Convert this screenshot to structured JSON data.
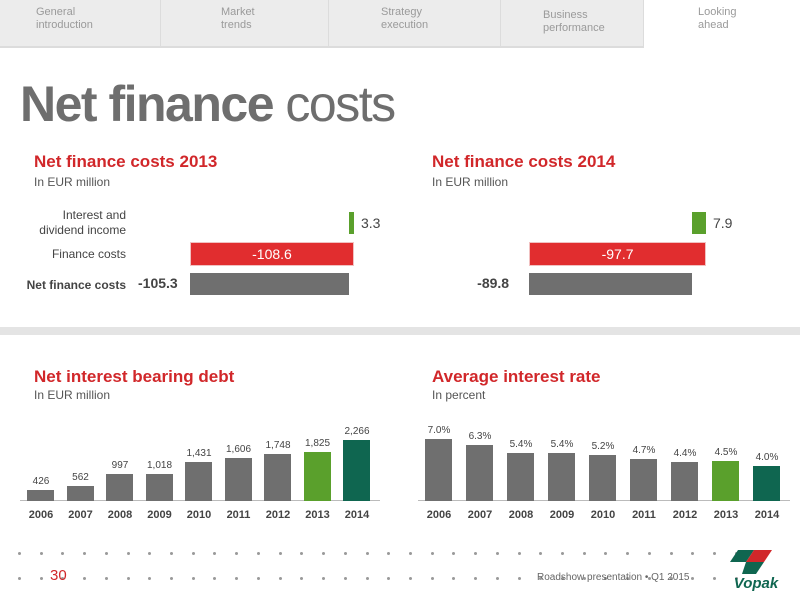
{
  "nav": {
    "tabs": [
      {
        "label": "General\nintroduction",
        "active": false
      },
      {
        "label": "Market\ntrends",
        "active": false
      },
      {
        "label": "Strategy\nexecution",
        "active": false
      },
      {
        "label": "Business\nperformance",
        "active": false
      },
      {
        "label": "Looking\nahead",
        "active": true
      }
    ]
  },
  "page": {
    "title_bold": "Net finance",
    "title_rest": "costs"
  },
  "footer": {
    "page_number": "30",
    "text": "Roadshow presentation  •  Q1 2015",
    "logo_text": "Vopak"
  },
  "colors": {
    "accent_red": "#d1272a",
    "bar_red": "#e12d2f",
    "green": "#5aa02c",
    "dark_green": "#0f6650",
    "grey": "#6f6f6f"
  },
  "chart_data": [
    {
      "type": "bar",
      "orientation": "waterfall",
      "title": "Net finance costs 2013",
      "subtitle": "In EUR million",
      "categories": [
        "Interest and dividend income",
        "Finance costs",
        "Net finance costs"
      ],
      "category_label_lines": [
        [
          "Interest and",
          "dividend income"
        ],
        [
          "Finance costs"
        ],
        [
          "Net finance costs"
        ]
      ],
      "values": [
        3.3,
        -108.6,
        -105.3
      ],
      "value_labels": [
        "3.3",
        "-108.6",
        "-105.3"
      ]
    },
    {
      "type": "bar",
      "orientation": "waterfall",
      "title": "Net finance costs 2014",
      "subtitle": "In EUR million",
      "categories": [
        "Interest and dividend income",
        "Finance costs",
        "Net finance costs"
      ],
      "values": [
        7.9,
        -97.7,
        -89.8
      ],
      "value_labels": [
        "7.9",
        "-97.7",
        "-89.8"
      ]
    },
    {
      "type": "bar",
      "title": "Net interest bearing debt",
      "subtitle": "In EUR million",
      "categories": [
        "2006",
        "2007",
        "2008",
        "2009",
        "2010",
        "2011",
        "2012",
        "2013",
        "2014"
      ],
      "values": [
        426,
        562,
        997,
        1018,
        1431,
        1606,
        1748,
        1825,
        2266
      ],
      "value_labels": [
        "426",
        "562",
        "997",
        "1,018",
        "1,431",
        "1,606",
        "1,748",
        "1,825",
        "2,266"
      ],
      "bar_colors": [
        "#6f6f6f",
        "#6f6f6f",
        "#6f6f6f",
        "#6f6f6f",
        "#6f6f6f",
        "#6f6f6f",
        "#6f6f6f",
        "#5aa02c",
        "#0f6650"
      ],
      "ylim": [
        0,
        2266
      ]
    },
    {
      "type": "bar",
      "title": "Average interest rate",
      "subtitle": "In percent",
      "categories": [
        "2006",
        "2007",
        "2008",
        "2009",
        "2010",
        "2011",
        "2012",
        "2013",
        "2014"
      ],
      "values": [
        7.0,
        6.3,
        5.4,
        5.4,
        5.2,
        4.7,
        4.4,
        4.5,
        4.0
      ],
      "value_labels": [
        "7.0%",
        "6.3%",
        "5.4%",
        "5.4%",
        "5.2%",
        "4.7%",
        "4.4%",
        "4.5%",
        "4.0%"
      ],
      "bar_colors": [
        "#6f6f6f",
        "#6f6f6f",
        "#6f6f6f",
        "#6f6f6f",
        "#6f6f6f",
        "#6f6f6f",
        "#6f6f6f",
        "#5aa02c",
        "#0f6650"
      ],
      "ylim": [
        0,
        7.0
      ]
    }
  ]
}
